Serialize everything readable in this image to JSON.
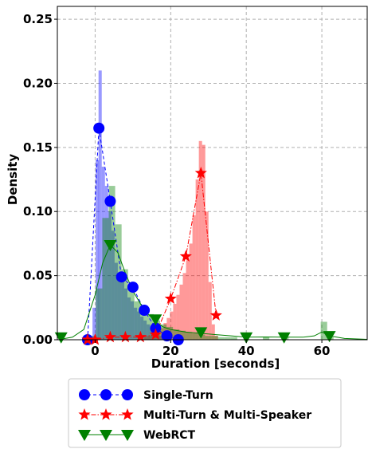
{
  "chart_data": {
    "type": "histogram-density",
    "xlabel": "Duration [seconds]",
    "ylabel": "Density",
    "xlim": [
      -10,
      72
    ],
    "ylim": [
      0,
      0.26
    ],
    "xticks": [
      0,
      20,
      40,
      60
    ],
    "yticks": [
      0.0,
      0.05,
      0.1,
      0.15,
      0.2,
      0.25
    ],
    "xtick_labels": [
      "0",
      "20",
      "40",
      "60"
    ],
    "ytick_labels": [
      "0.00",
      "0.05",
      "0.10",
      "0.15",
      "0.20",
      "0.25"
    ],
    "grid": true,
    "legend_position": "below",
    "series": [
      {
        "name": "Single-Turn",
        "color": "#0000ff",
        "marker": "circle",
        "line_style": "dashed",
        "histogram": {
          "bin_width": 0.85,
          "bins": [
            [
              -0.7,
              0.025
            ],
            [
              0.15,
              0.14
            ],
            [
              0.9,
              0.21
            ],
            [
              1.75,
              0.135
            ],
            [
              2.6,
              0.12
            ],
            [
              3.45,
              0.1
            ],
            [
              4.3,
              0.085
            ],
            [
              5.15,
              0.06
            ],
            [
              6.0,
              0.052
            ],
            [
              6.85,
              0.045
            ],
            [
              7.7,
              0.04
            ],
            [
              8.55,
              0.033
            ],
            [
              9.4,
              0.03
            ],
            [
              10.25,
              0.025
            ],
            [
              11.1,
              0.022
            ],
            [
              11.95,
              0.018
            ],
            [
              12.8,
              0.015
            ],
            [
              13.65,
              0.012
            ],
            [
              14.5,
              0.009
            ],
            [
              15.35,
              0.006
            ],
            [
              16.2,
              0.004
            ],
            [
              17.05,
              0.003
            ],
            [
              17.9,
              0.002
            ],
            [
              18.75,
              0.001
            ]
          ]
        },
        "points": [
          [
            -2,
            0.0
          ],
          [
            1,
            0.165
          ],
          [
            4,
            0.108
          ],
          [
            7,
            0.049
          ],
          [
            10,
            0.041
          ],
          [
            13,
            0.023
          ],
          [
            16,
            0.009
          ],
          [
            19,
            0.003
          ],
          [
            22,
            0.0
          ]
        ]
      },
      {
        "name": "Multi-Turn & Multi-Speaker",
        "color": "#ff0000",
        "marker": "star",
        "line_style": "dash-dot",
        "histogram": {
          "bin_width": 0.85,
          "bins": [
            [
              13.0,
              0.002
            ],
            [
              13.85,
              0.003
            ],
            [
              14.7,
              0.004
            ],
            [
              15.55,
              0.005
            ],
            [
              16.4,
              0.007
            ],
            [
              17.25,
              0.009
            ],
            [
              18.1,
              0.013
            ],
            [
              18.95,
              0.017
            ],
            [
              19.8,
              0.022
            ],
            [
              20.65,
              0.028
            ],
            [
              21.5,
              0.035
            ],
            [
              22.35,
              0.043
            ],
            [
              23.2,
              0.052
            ],
            [
              24.05,
              0.062
            ],
            [
              24.9,
              0.075
            ],
            [
              25.75,
              0.097
            ],
            [
              26.6,
              0.125
            ],
            [
              27.45,
              0.155
            ],
            [
              28.3,
              0.152
            ],
            [
              29.15,
              0.1
            ],
            [
              30.0,
              0.045
            ],
            [
              30.85,
              0.012
            ],
            [
              31.7,
              0.003
            ]
          ]
        },
        "points": [
          [
            -2,
            0.0
          ],
          [
            0,
            0.0
          ],
          [
            4,
            0.002
          ],
          [
            8,
            0.002
          ],
          [
            12,
            0.002
          ],
          [
            16,
            0.004
          ],
          [
            20,
            0.032
          ],
          [
            24,
            0.065
          ],
          [
            28,
            0.13
          ],
          [
            32,
            0.019
          ]
        ]
      },
      {
        "name": "WebRCT",
        "color": "#008000",
        "marker": "triangle-down",
        "line_style": "solid",
        "histogram": {
          "bin_width": 1.7,
          "bins": [
            [
              -1.5,
              0.003
            ],
            [
              0.2,
              0.04
            ],
            [
              1.9,
              0.095
            ],
            [
              3.6,
              0.12
            ],
            [
              5.3,
              0.09
            ],
            [
              7.0,
              0.055
            ],
            [
              8.7,
              0.04
            ],
            [
              10.4,
              0.03
            ],
            [
              12.1,
              0.025
            ],
            [
              13.8,
              0.02
            ],
            [
              15.5,
              0.015
            ],
            [
              17.2,
              0.012
            ],
            [
              18.9,
              0.01
            ],
            [
              20.6,
              0.008
            ],
            [
              22.3,
              0.007
            ],
            [
              24.0,
              0.006
            ],
            [
              25.7,
              0.005
            ],
            [
              27.4,
              0.004
            ],
            [
              29.1,
              0.003
            ],
            [
              30.8,
              0.003
            ],
            [
              32.5,
              0.002
            ],
            [
              34.2,
              0.002
            ],
            [
              35.9,
              0.002
            ],
            [
              44.4,
              0.002
            ],
            [
              49.5,
              0.002
            ],
            [
              59.7,
              0.014
            ],
            [
              61.4,
              0.002
            ]
          ]
        },
        "points": [
          [
            -9,
            0.002
          ],
          [
            4,
            0.074
          ],
          [
            16,
            0.016
          ],
          [
            28,
            0.006
          ],
          [
            40,
            0.002
          ],
          [
            50,
            0.002
          ],
          [
            62,
            0.003
          ]
        ],
        "kde": [
          [
            -9,
            0.0005
          ],
          [
            -6,
            0.002
          ],
          [
            -3,
            0.008
          ],
          [
            0,
            0.035
          ],
          [
            2,
            0.06
          ],
          [
            4,
            0.074
          ],
          [
            6,
            0.068
          ],
          [
            8,
            0.052
          ],
          [
            10,
            0.038
          ],
          [
            12,
            0.028
          ],
          [
            14,
            0.02
          ],
          [
            16,
            0.014
          ],
          [
            18,
            0.01
          ],
          [
            20,
            0.008
          ],
          [
            24,
            0.006
          ],
          [
            28,
            0.005
          ],
          [
            32,
            0.004
          ],
          [
            36,
            0.003
          ],
          [
            40,
            0.002
          ],
          [
            45,
            0.0022
          ],
          [
            50,
            0.002
          ],
          [
            55,
            0.002
          ],
          [
            58,
            0.003
          ],
          [
            60,
            0.006
          ],
          [
            62,
            0.003
          ],
          [
            66,
            0.001
          ],
          [
            72,
            0.0003
          ]
        ]
      }
    ]
  }
}
